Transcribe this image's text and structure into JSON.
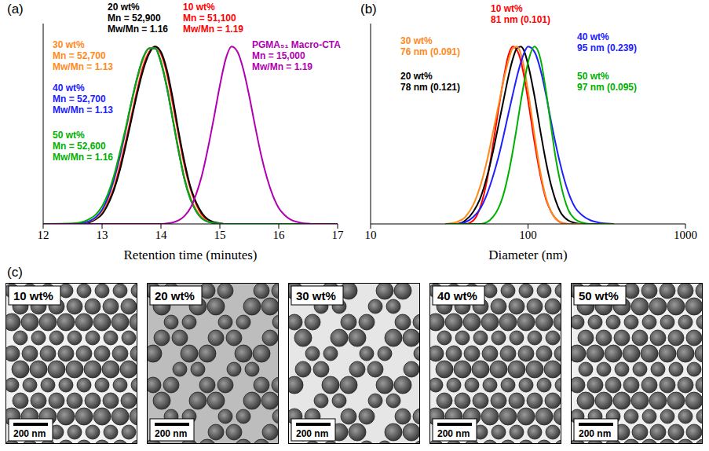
{
  "chart_data": [
    {
      "panel": "(a)",
      "type": "line",
      "x_label": "Retention time (minutes)",
      "x": [
        12.0,
        12.5,
        12.7,
        12.8,
        12.9,
        13.0,
        13.1,
        13.2,
        13.3,
        13.4,
        13.5,
        13.6,
        13.7,
        13.8,
        13.9,
        14.0,
        14.1,
        14.2,
        14.3,
        14.4,
        14.5,
        14.6,
        14.7,
        14.8,
        14.9,
        15.0,
        15.1,
        15.2,
        15.3,
        15.4,
        15.5,
        15.6,
        15.7,
        15.8,
        15.9,
        16.0,
        16.1,
        16.2,
        16.3,
        16.4,
        16.5,
        16.6,
        17.0
      ],
      "xlim": [
        12,
        17
      ],
      "xticks": [
        12,
        13,
        14,
        15,
        16,
        17
      ],
      "ylim": [
        0,
        1.13
      ],
      "tick_labels": "x",
      "series": [
        {
          "name": "10 wt%",
          "color": "#ff0000",
          "annotation": [
            "Mn = 51,100",
            "Mw/Mn = 1.19"
          ],
          "values": [
            0,
            0,
            0.005,
            0.012,
            0.03,
            0.06,
            0.12,
            0.2,
            0.32,
            0.46,
            0.61,
            0.76,
            0.89,
            0.97,
            1.0,
            0.96,
            0.85,
            0.68,
            0.5,
            0.33,
            0.2,
            0.11,
            0.05,
            0.02,
            0.008,
            0.003,
            0,
            0,
            0,
            0,
            0,
            0,
            0,
            0,
            0,
            0,
            0,
            0,
            0,
            0,
            0,
            0,
            0
          ]
        },
        {
          "name": "20 wt%",
          "color": "#000000",
          "annotation": [
            "Mn = 52,900",
            "Mw/Mn = 1.16"
          ],
          "values": [
            0,
            0,
            0.005,
            0.011,
            0.028,
            0.055,
            0.11,
            0.19,
            0.3,
            0.44,
            0.59,
            0.74,
            0.87,
            0.96,
            1.0,
            0.97,
            0.87,
            0.71,
            0.52,
            0.35,
            0.21,
            0.12,
            0.06,
            0.025,
            0.01,
            0.004,
            0,
            0,
            0,
            0,
            0,
            0,
            0,
            0,
            0,
            0,
            0,
            0,
            0,
            0,
            0,
            0,
            0
          ]
        },
        {
          "name": "30 wt%",
          "color": "#ff8a1c",
          "annotation": [
            "Mn = 52,700",
            "Mw/Mn = 1.13"
          ],
          "values": [
            0,
            0,
            0.007,
            0.016,
            0.035,
            0.07,
            0.14,
            0.24,
            0.37,
            0.52,
            0.68,
            0.82,
            0.93,
            0.99,
            0.99,
            0.92,
            0.78,
            0.6,
            0.42,
            0.26,
            0.15,
            0.08,
            0.035,
            0.015,
            0.005,
            0.002,
            0,
            0,
            0,
            0,
            0,
            0,
            0,
            0,
            0,
            0,
            0,
            0,
            0,
            0,
            0,
            0,
            0
          ]
        },
        {
          "name": "40 wt%",
          "color": "#2020ff",
          "annotation": [
            "Mn = 52,700",
            "Mw/Mn = 1.13"
          ],
          "values": [
            0,
            0,
            0.008,
            0.018,
            0.04,
            0.08,
            0.15,
            0.25,
            0.38,
            0.53,
            0.69,
            0.83,
            0.94,
            0.99,
            0.99,
            0.91,
            0.77,
            0.59,
            0.41,
            0.25,
            0.14,
            0.07,
            0.03,
            0.012,
            0.005,
            0.002,
            0,
            0,
            0,
            0,
            0,
            0,
            0,
            0,
            0,
            0,
            0,
            0,
            0,
            0,
            0,
            0,
            0
          ]
        },
        {
          "name": "50 wt%",
          "color": "#00b000",
          "annotation": [
            "Mn = 52,600",
            "Mw/Mn = 1.16"
          ],
          "values": [
            0,
            0.003,
            0.015,
            0.03,
            0.055,
            0.1,
            0.17,
            0.27,
            0.4,
            0.54,
            0.69,
            0.83,
            0.94,
            0.99,
            0.99,
            0.91,
            0.77,
            0.59,
            0.41,
            0.25,
            0.14,
            0.07,
            0.03,
            0.012,
            0.005,
            0.002,
            0,
            0,
            0,
            0,
            0,
            0,
            0,
            0,
            0,
            0,
            0,
            0,
            0,
            0,
            0,
            0,
            0
          ]
        },
        {
          "name": "PGMA₅₁ Macro-CTA",
          "color": "#b000b0",
          "annotation": [
            "Mn = 15,000",
            "Mw/Mn = 1.19"
          ],
          "values": [
            0,
            0,
            0,
            0,
            0,
            0,
            0,
            0,
            0,
            0,
            0,
            0,
            0,
            0,
            0,
            0,
            0.003,
            0.008,
            0.02,
            0.045,
            0.09,
            0.17,
            0.28,
            0.43,
            0.6,
            0.78,
            0.93,
            1.0,
            0.97,
            0.87,
            0.72,
            0.55,
            0.39,
            0.26,
            0.16,
            0.09,
            0.05,
            0.025,
            0.012,
            0.005,
            0.002,
            0,
            0
          ]
        }
      ]
    },
    {
      "panel": "(b)",
      "type": "line",
      "x_label": "Diameter (nm)",
      "log": "x",
      "x": [
        30,
        35,
        40,
        45,
        50,
        55,
        60,
        65,
        70,
        75,
        80,
        85,
        90,
        95,
        100,
        110,
        120,
        130,
        140,
        150,
        160,
        180,
        200,
        220,
        250,
        280,
        320,
        350
      ],
      "xlim": [
        10,
        1000
      ],
      "xticks": [
        10,
        100,
        1000
      ],
      "ylim": [
        0,
        1.13
      ],
      "tick_labels": "x",
      "series": [
        {
          "name": "10 wt%",
          "color": "#ff0000",
          "annotation": [
            "81 nm (0.101)"
          ],
          "values": [
            0,
            0,
            0,
            0.02,
            0.1,
            0.25,
            0.45,
            0.65,
            0.82,
            0.95,
            1.0,
            0.98,
            0.92,
            0.82,
            0.7,
            0.46,
            0.27,
            0.14,
            0.07,
            0.03,
            0.01,
            0,
            0,
            0,
            0,
            0,
            0,
            0
          ]
        },
        {
          "name": "20 wt%",
          "color": "#000000",
          "annotation": [
            "78 nm (0.121)"
          ],
          "values": [
            0,
            0,
            0.02,
            0.07,
            0.15,
            0.27,
            0.41,
            0.56,
            0.7,
            0.83,
            0.93,
            0.99,
            1.0,
            0.97,
            0.9,
            0.72,
            0.52,
            0.35,
            0.22,
            0.13,
            0.07,
            0.02,
            0.005,
            0,
            0,
            0,
            0,
            0
          ]
        },
        {
          "name": "30 wt%",
          "color": "#ff8a1c",
          "annotation": [
            "76 nm (0.091)"
          ],
          "values": [
            0,
            0.01,
            0.04,
            0.11,
            0.22,
            0.36,
            0.52,
            0.67,
            0.81,
            0.92,
            0.99,
            1.0,
            0.96,
            0.87,
            0.75,
            0.5,
            0.29,
            0.15,
            0.07,
            0.03,
            0.01,
            0,
            0,
            0,
            0,
            0,
            0,
            0
          ]
        },
        {
          "name": "40 wt%",
          "color": "#2020ff",
          "annotation": [
            "95 nm (0.239)"
          ],
          "values": [
            0,
            0,
            0.01,
            0.04,
            0.09,
            0.17,
            0.27,
            0.38,
            0.5,
            0.62,
            0.73,
            0.83,
            0.91,
            0.97,
            1.0,
            0.97,
            0.87,
            0.73,
            0.58,
            0.45,
            0.34,
            0.18,
            0.09,
            0.05,
            0.02,
            0.008,
            0.002,
            0
          ]
        },
        {
          "name": "50 wt%",
          "color": "#00b000",
          "annotation": [
            "97 nm (0.095)"
          ],
          "values": [
            0,
            0,
            0,
            0,
            0,
            0.01,
            0.04,
            0.09,
            0.17,
            0.28,
            0.41,
            0.55,
            0.69,
            0.81,
            0.91,
            1.0,
            0.93,
            0.75,
            0.55,
            0.37,
            0.24,
            0.08,
            0.025,
            0.008,
            0,
            0,
            0,
            0
          ]
        }
      ]
    }
  ],
  "images": {
    "panel": "(c)",
    "panels": [
      {
        "label": "10 wt%",
        "scale_bar": "200 nm"
      },
      {
        "label": "20 wt%",
        "scale_bar": "200 nm"
      },
      {
        "label": "30 wt%",
        "scale_bar": "200 nm"
      },
      {
        "label": "40 wt%",
        "scale_bar": "200 nm"
      },
      {
        "label": "50 wt%",
        "scale_bar": "200 nm"
      }
    ]
  }
}
